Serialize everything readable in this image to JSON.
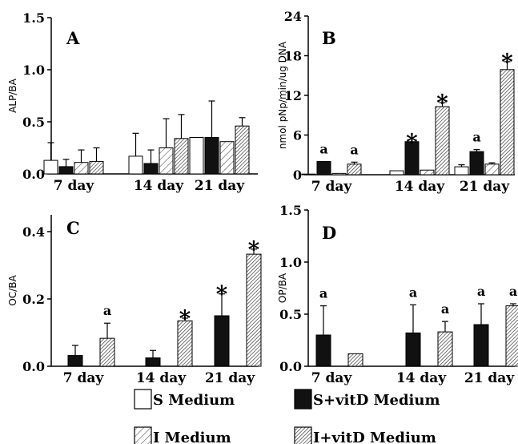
{
  "legend": [
    {
      "key": "S",
      "label": "S Medium"
    },
    {
      "key": "SV",
      "label": "S+vitD Medium"
    },
    {
      "key": "I",
      "label": "I Medium"
    },
    {
      "key": "IV",
      "label": "I+vitD Medium"
    }
  ],
  "series_styles": {
    "S": {
      "fill": "#ffffff",
      "pattern": "none"
    },
    "SV": {
      "fill": "#111111",
      "pattern": "none"
    },
    "I": {
      "fill": "#ffffff",
      "pattern": "light-hatch"
    },
    "IV": {
      "fill": "#ffffff",
      "pattern": "dense-hatch"
    }
  },
  "chart_data": [
    {
      "panel": "A",
      "type": "bar",
      "ylabel": "ALP/BA",
      "categories": [
        "7 day",
        "14 day",
        "21 day"
      ],
      "ylim": [
        0,
        1.5
      ],
      "yticks": [
        "0.0",
        "0.5",
        "1.0",
        "1.5"
      ],
      "ytick_values": [
        0,
        0.5,
        1.0,
        1.5
      ],
      "series": [
        {
          "key": "S",
          "values": [
            0.13,
            0.17,
            0.35
          ],
          "errors": [
            0.17,
            0.22,
            0.0
          ]
        },
        {
          "key": "SV",
          "values": [
            0.07,
            0.1,
            0.35
          ],
          "errors": [
            0.07,
            0.13,
            0.35
          ]
        },
        {
          "key": "I",
          "values": [
            0.11,
            0.25,
            0.31
          ],
          "errors": [
            0.12,
            0.28,
            0.0
          ]
        },
        {
          "key": "IV",
          "values": [
            0.12,
            0.34,
            0.46
          ],
          "errors": [
            0.13,
            0.23,
            0.08
          ]
        }
      ],
      "annotations": []
    },
    {
      "panel": "B",
      "type": "bar",
      "ylabel": "nmol pNp/min/ug DNA",
      "categories": [
        "7 day",
        "14 day",
        "21 day"
      ],
      "ylim": [
        0,
        24
      ],
      "yticks": [
        "0",
        "6",
        "12",
        "18",
        "24"
      ],
      "ytick_values": [
        0,
        6,
        12,
        18,
        24
      ],
      "series": [
        {
          "key": "S",
          "values": [
            0.1,
            0.6,
            1.2
          ],
          "errors": [
            0,
            0,
            0.3
          ]
        },
        {
          "key": "SV",
          "values": [
            2.0,
            5.0,
            3.5
          ],
          "errors": [
            0,
            0,
            0.3
          ]
        },
        {
          "key": "I",
          "values": [
            0.2,
            0.7,
            1.6
          ],
          "errors": [
            0,
            0,
            0.2
          ]
        },
        {
          "key": "IV",
          "values": [
            1.6,
            10.3,
            15.9
          ],
          "errors": [
            0.3,
            0.6,
            1.2
          ]
        }
      ],
      "annotations": [
        {
          "text": "a",
          "category": 0,
          "series": "SV"
        },
        {
          "text": "a",
          "category": 0,
          "series": "IV"
        },
        {
          "text": "*",
          "category": 1,
          "series": "SV"
        },
        {
          "text": "*",
          "category": 1,
          "series": "IV"
        },
        {
          "text": "a",
          "category": 2,
          "series": "SV"
        },
        {
          "text": "*",
          "category": 2,
          "series": "IV"
        }
      ]
    },
    {
      "panel": "C",
      "type": "bar",
      "ylabel": "OC/BA",
      "categories": [
        "7 day",
        "14 day",
        "21 day"
      ],
      "ylim": [
        0,
        0.45
      ],
      "yticks": [
        "0.0",
        "0.2",
        "0.4"
      ],
      "ytick_values": [
        0,
        0.2,
        0.4
      ],
      "series": [
        {
          "key": "S",
          "values": [
            0,
            0,
            0
          ],
          "errors": [
            0,
            0,
            0
          ]
        },
        {
          "key": "SV",
          "values": [
            0.032,
            0.025,
            0.15
          ],
          "errors": [
            0.03,
            0.022,
            0.065
          ]
        },
        {
          "key": "I",
          "values": [
            0,
            0,
            0
          ],
          "errors": [
            0,
            0,
            0
          ]
        },
        {
          "key": "IV",
          "values": [
            0.083,
            0.135,
            0.333
          ],
          "errors": [
            0.045,
            0.008,
            0.015
          ]
        }
      ],
      "annotations": [
        {
          "text": "a",
          "category": 0,
          "series": "IV"
        },
        {
          "text": "*",
          "category": 1,
          "series": "IV"
        },
        {
          "text": "*",
          "category": 2,
          "series": "SV"
        },
        {
          "text": "*",
          "category": 2,
          "series": "IV"
        }
      ]
    },
    {
      "panel": "D",
      "type": "bar",
      "ylabel": "OP/BA",
      "categories": [
        "7 day",
        "14 day",
        "21 day"
      ],
      "ylim": [
        0,
        1.5
      ],
      "yticks": [
        "0.0",
        "0.5",
        "1.0",
        "1.5"
      ],
      "ytick_values": [
        0,
        0.5,
        1.0,
        1.5
      ],
      "series": [
        {
          "key": "S",
          "values": [
            0,
            0,
            0
          ],
          "errors": [
            0,
            0,
            0
          ]
        },
        {
          "key": "SV",
          "values": [
            0.3,
            0.32,
            0.4
          ],
          "errors": [
            0.28,
            0.27,
            0.2
          ]
        },
        {
          "key": "I",
          "values": [
            0,
            0,
            0
          ],
          "errors": [
            0,
            0,
            0
          ]
        },
        {
          "key": "IV",
          "values": [
            0.12,
            0.33,
            0.58
          ],
          "errors": [
            0.0,
            0.1,
            0.02
          ]
        }
      ],
      "annotations": [
        {
          "text": "a",
          "category": 0,
          "series": "SV"
        },
        {
          "text": "a",
          "category": 1,
          "series": "SV"
        },
        {
          "text": "a",
          "category": 1,
          "series": "IV"
        },
        {
          "text": "a",
          "category": 2,
          "series": "SV"
        },
        {
          "text": "a",
          "category": 2,
          "series": "IV"
        }
      ]
    }
  ]
}
